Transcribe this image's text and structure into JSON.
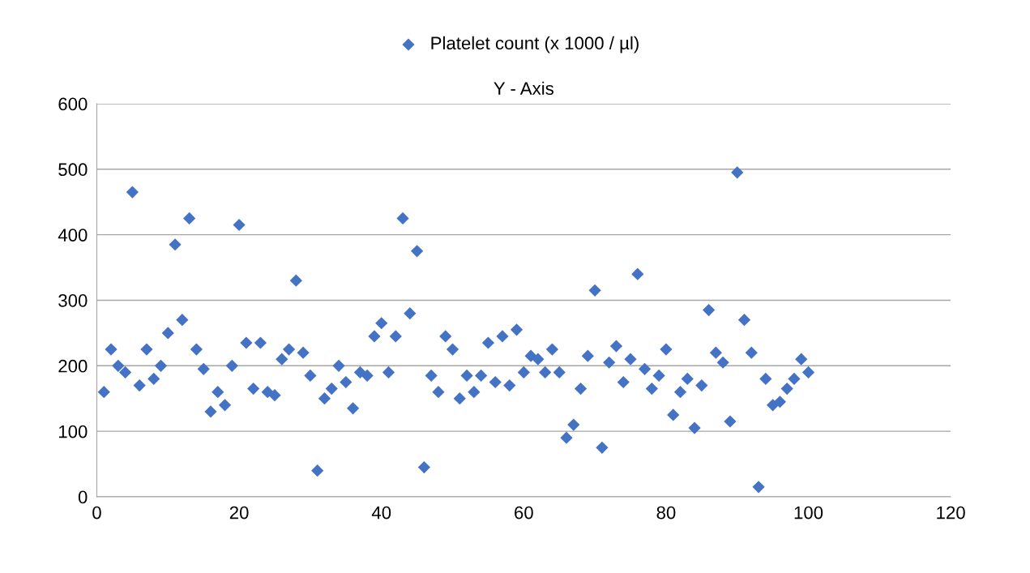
{
  "chart_data": {
    "type": "scatter",
    "title": "Y - Axis",
    "x": [
      1,
      2,
      3,
      4,
      5,
      6,
      7,
      8,
      9,
      10,
      11,
      12,
      13,
      14,
      15,
      16,
      17,
      18,
      19,
      20,
      21,
      22,
      23,
      24,
      25,
      26,
      27,
      28,
      29,
      30,
      31,
      32,
      33,
      34,
      35,
      36,
      37,
      38,
      39,
      40,
      41,
      42,
      43,
      44,
      45,
      46,
      47,
      48,
      49,
      50,
      51,
      52,
      53,
      54,
      55,
      56,
      57,
      58,
      59,
      60,
      61,
      62,
      63,
      64,
      65,
      66,
      67,
      68,
      69,
      70,
      71,
      72,
      73,
      74,
      75,
      76,
      77,
      78,
      79,
      80,
      81,
      82,
      83,
      84,
      85,
      86,
      87,
      88,
      89,
      90,
      91,
      92,
      93,
      94,
      95,
      96,
      97,
      98,
      99,
      100
    ],
    "series": [
      {
        "name": "Platelet count (x 1000 / µl)",
        "color": "#4472c4",
        "values": [
          160,
          225,
          200,
          190,
          465,
          170,
          225,
          180,
          200,
          250,
          385,
          270,
          425,
          225,
          195,
          130,
          160,
          140,
          200,
          415,
          235,
          165,
          235,
          160,
          155,
          210,
          225,
          330,
          220,
          185,
          40,
          150,
          165,
          200,
          175,
          135,
          190,
          185,
          245,
          265,
          190,
          245,
          425,
          280,
          375,
          45,
          185,
          160,
          245,
          225,
          150,
          185,
          160,
          185,
          235,
          175,
          245,
          170,
          255,
          190,
          215,
          210,
          190,
          225,
          190,
          90,
          110,
          165,
          215,
          315,
          75,
          205,
          230,
          175,
          210,
          340,
          195,
          165,
          185,
          225,
          125,
          160,
          180,
          105,
          170,
          285,
          220,
          205,
          115,
          495,
          270,
          220,
          15,
          180,
          140,
          145,
          165,
          180,
          210,
          190
        ]
      }
    ],
    "xlim": [
      0,
      120
    ],
    "xticks": [
      0,
      20,
      40,
      60,
      80,
      100,
      120
    ],
    "ylim": [
      0,
      600
    ],
    "yticks": [
      0,
      100,
      200,
      300,
      400,
      500,
      600
    ],
    "grid": "y",
    "legend": "top",
    "marker": "diamond"
  }
}
